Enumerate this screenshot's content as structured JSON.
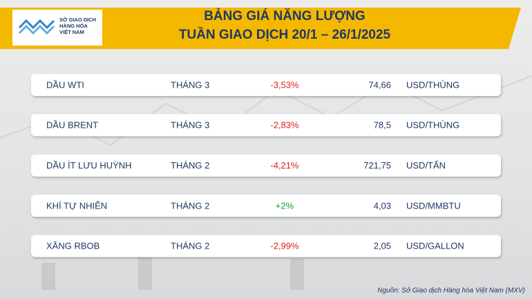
{
  "logo": {
    "lines": [
      "SỞ GIAO DỊCH",
      "HÀNG HÓA",
      "VIỆT NAM"
    ]
  },
  "header": {
    "title": [
      "BẢNG GIÁ NĂNG LƯỢNG",
      "TUẦN GIAO DỊCH 20/1 – 26/1/2025"
    ]
  },
  "table": {
    "rows": [
      [
        "DẦU WTI",
        "THÁNG 3",
        "-3,53%",
        "74,66",
        "USD/THÙNG"
      ],
      [
        "DẦU BRENT",
        "THÁNG 3",
        "-2,83%",
        "78,5",
        "USD/THÙNG"
      ],
      [
        "DẦU ÍT LƯU HUỲNH",
        "THÁNG 2",
        "-4,21%",
        "721,75",
        "USD/TẤN"
      ],
      [
        "KHÍ TỰ NHIÊN",
        "THÁNG 2",
        "+2%",
        "4,03",
        "USD/MMBTU"
      ],
      [
        "XĂNG RBOB",
        "THÁNG 2",
        "-2,99%",
        "2,05",
        "USD/GALLON"
      ]
    ]
  },
  "source": "Nguồn: Sở Giao dịch Hàng hóa Việt Nam (MXV)"
}
